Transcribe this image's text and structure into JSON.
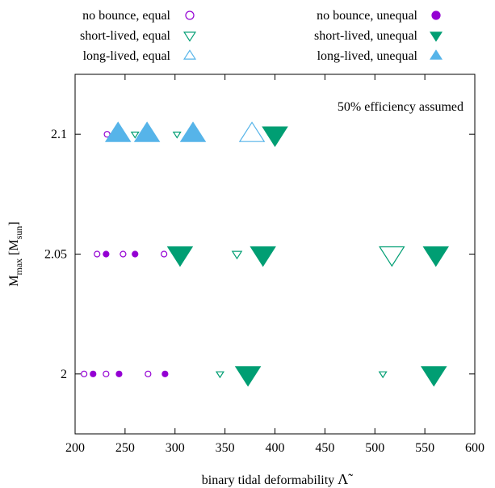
{
  "chart_data": {
    "type": "scatter",
    "title": "",
    "annotation": "50% efficiency assumed",
    "xlabel": "binary tidal deformability",
    "xlabel_symbol": "Λ̃",
    "ylabel": "M",
    "ylabel_sub": "max",
    "ylabel_unit_prefix": "[M",
    "ylabel_unit_sub": "sun",
    "ylabel_unit_suffix": "]",
    "xlim": [
      200,
      600
    ],
    "ylim": [
      1.975,
      2.125
    ],
    "xticks": [
      "200",
      "250",
      "300",
      "350",
      "400",
      "450",
      "500",
      "550",
      "600"
    ],
    "xtick_values": [
      200,
      250,
      300,
      350,
      400,
      450,
      500,
      550,
      600
    ],
    "yticks": [
      "2",
      "2.05",
      "2.1"
    ],
    "ytick_values": [
      2.0,
      2.05,
      2.1
    ],
    "legend_position": "top",
    "colors": {
      "purple": "#9400d3",
      "green": "#009e73",
      "blue": "#56b4e9"
    },
    "series": [
      {
        "name": "no bounce, equal",
        "marker": "circle",
        "filled": false,
        "color": "#9400d3",
        "points": [
          {
            "x": 209,
            "y": 2.0,
            "size": 0.35
          },
          {
            "x": 231,
            "y": 2.0,
            "size": 0.35
          },
          {
            "x": 273,
            "y": 2.0,
            "size": 0.35
          },
          {
            "x": 222,
            "y": 2.05,
            "size": 0.35
          },
          {
            "x": 248,
            "y": 2.05,
            "size": 0.35
          },
          {
            "x": 289,
            "y": 2.05,
            "size": 0.35
          },
          {
            "x": 232,
            "y": 2.1,
            "size": 0.35
          }
        ]
      },
      {
        "name": "short-lived, equal",
        "marker": "triangle-down",
        "filled": false,
        "color": "#009e73",
        "points": [
          {
            "x": 345,
            "y": 2.0,
            "size": 0.35
          },
          {
            "x": 508,
            "y": 2.0,
            "size": 0.35
          },
          {
            "x": 362,
            "y": 2.05,
            "size": 0.45
          },
          {
            "x": 517,
            "y": 2.05,
            "size": 1.2
          },
          {
            "x": 260,
            "y": 2.1,
            "size": 0.35
          },
          {
            "x": 302,
            "y": 2.1,
            "size": 0.35
          }
        ]
      },
      {
        "name": "long-lived, equal",
        "marker": "triangle-up",
        "filled": false,
        "color": "#56b4e9",
        "points": [
          {
            "x": 377,
            "y": 2.1,
            "size": 1.2
          }
        ]
      },
      {
        "name": "no bounce, unequal",
        "marker": "circle",
        "filled": true,
        "color": "#9400d3",
        "points": [
          {
            "x": 218,
            "y": 2.0,
            "size": 0.35
          },
          {
            "x": 244,
            "y": 2.0,
            "size": 0.35
          },
          {
            "x": 290,
            "y": 2.0,
            "size": 0.35
          },
          {
            "x": 231,
            "y": 2.05,
            "size": 0.35
          },
          {
            "x": 260,
            "y": 2.05,
            "size": 0.35
          }
        ]
      },
      {
        "name": "short-lived, unequal",
        "marker": "triangle-down",
        "filled": true,
        "color": "#009e73",
        "points": [
          {
            "x": 373,
            "y": 2.0,
            "size": 1.2
          },
          {
            "x": 559,
            "y": 2.0,
            "size": 1.2
          },
          {
            "x": 305,
            "y": 2.05,
            "size": 1.2
          },
          {
            "x": 388,
            "y": 2.05,
            "size": 1.2
          },
          {
            "x": 561,
            "y": 2.05,
            "size": 1.2
          },
          {
            "x": 400,
            "y": 2.1,
            "size": 1.2
          }
        ]
      },
      {
        "name": "long-lived, unequal",
        "marker": "triangle-up",
        "filled": true,
        "color": "#56b4e9",
        "points": [
          {
            "x": 243,
            "y": 2.1,
            "size": 1.2
          },
          {
            "x": 272,
            "y": 2.1,
            "size": 1.2
          },
          {
            "x": 318,
            "y": 2.1,
            "size": 1.2
          }
        ]
      }
    ]
  }
}
